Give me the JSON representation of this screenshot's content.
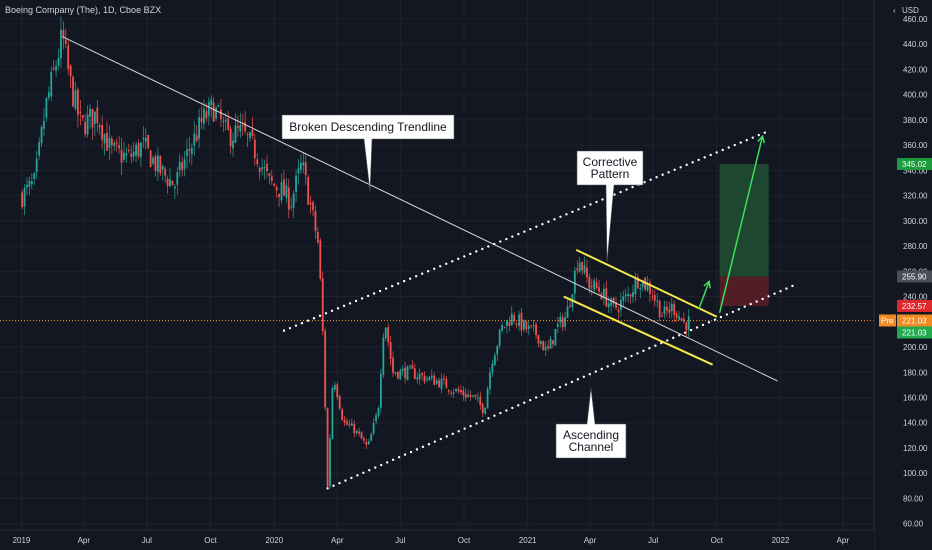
{
  "header": {
    "title": "Boeing Company (The), 1D, Cboe BZX",
    "currency": "USD"
  },
  "colors": {
    "background": "#131722",
    "up": "#26a69a",
    "down": "#ef5350",
    "grid": "#1e222d",
    "text": "#d1d4dc",
    "trendline": "#d8d8d8",
    "channel": "#ffffff",
    "pattern": "#f5e84a",
    "arrow": "#3ce05b",
    "target_zone": "#1f4d32",
    "stop_zone": "#5a1e28"
  },
  "chart_data": {
    "type": "candlestick",
    "x_tick_labels": [
      "2019",
      "Apr",
      "Jul",
      "Oct",
      "2020",
      "Apr",
      "Jul",
      "Oct",
      "2021",
      "Apr",
      "Jul",
      "Oct",
      "2022",
      "Apr"
    ],
    "ylim": [
      55,
      475
    ],
    "y_ticks": [
      60,
      80,
      100,
      120,
      140,
      160,
      180,
      200,
      220,
      240,
      260,
      280,
      300,
      320,
      340,
      360,
      380,
      400,
      420,
      440,
      460
    ],
    "price_path": [
      [
        "2019-01-02",
        320
      ],
      [
        "2019-01-20",
        330
      ],
      [
        "2019-02-05",
        390
      ],
      [
        "2019-03-01",
        446
      ],
      [
        "2019-03-12",
        410
      ],
      [
        "2019-03-28",
        375
      ],
      [
        "2019-04-20",
        385
      ],
      [
        "2019-05-10",
        355
      ],
      [
        "2019-06-05",
        350
      ],
      [
        "2019-06-25",
        360
      ],
      [
        "2019-07-20",
        340
      ],
      [
        "2019-08-10",
        328
      ],
      [
        "2019-08-30",
        355
      ],
      [
        "2019-09-20",
        380
      ],
      [
        "2019-10-05",
        390
      ],
      [
        "2019-10-25",
        368
      ],
      [
        "2019-11-15",
        370
      ],
      [
        "2019-12-05",
        355
      ],
      [
        "2019-12-25",
        330
      ],
      [
        "2020-01-10",
        325
      ],
      [
        "2020-01-25",
        315
      ],
      [
        "2020-02-10",
        345
      ],
      [
        "2020-02-25",
        305
      ],
      [
        "2020-03-05",
        280
      ],
      [
        "2020-03-12",
        200
      ],
      [
        "2020-03-18",
        89
      ],
      [
        "2020-03-26",
        180
      ],
      [
        "2020-04-10",
        140
      ],
      [
        "2020-04-25",
        135
      ],
      [
        "2020-05-15",
        120
      ],
      [
        "2020-05-30",
        150
      ],
      [
        "2020-06-08",
        225
      ],
      [
        "2020-06-20",
        180
      ],
      [
        "2020-07-15",
        180
      ],
      [
        "2020-08-10",
        175
      ],
      [
        "2020-08-28",
        172
      ],
      [
        "2020-09-20",
        165
      ],
      [
        "2020-10-15",
        160
      ],
      [
        "2020-10-30",
        150
      ],
      [
        "2020-11-10",
        190
      ],
      [
        "2020-11-25",
        215
      ],
      [
        "2020-12-10",
        225
      ],
      [
        "2020-12-28",
        215
      ],
      [
        "2021-01-15",
        210
      ],
      [
        "2021-01-29",
        195
      ],
      [
        "2021-02-12",
        215
      ],
      [
        "2021-02-26",
        225
      ],
      [
        "2021-03-15",
        272
      ],
      [
        "2021-03-30",
        250
      ],
      [
        "2021-04-15",
        245
      ],
      [
        "2021-05-05",
        230
      ],
      [
        "2021-05-25",
        240
      ],
      [
        "2021-06-10",
        255
      ],
      [
        "2021-06-28",
        245
      ],
      [
        "2021-07-15",
        225
      ],
      [
        "2021-07-30",
        232
      ],
      [
        "2021-08-16",
        218
      ],
      [
        "2021-08-24",
        221
      ]
    ],
    "last_price": "221.03",
    "price_labels": [
      {
        "value": 345.02,
        "text": "345.02",
        "color": "#1d9c3e"
      },
      {
        "value": 255.9,
        "text": "255.90",
        "color": "#4a4e59"
      },
      {
        "value": 232.57,
        "text": "232.57",
        "color": "#e0292f"
      },
      {
        "value": 221.03,
        "text": "221.03",
        "color": "#f18a21",
        "prefix": "Pre"
      },
      {
        "value": 221.03,
        "text": "221.03",
        "color": "#22ab4e"
      }
    ],
    "annotations": [
      {
        "id": "trendline",
        "text": "Broken Descending Trendline"
      },
      {
        "id": "pattern",
        "text": "Corrective\nPattern"
      },
      {
        "id": "channel",
        "text": "Ascending\nChannel"
      }
    ],
    "drawings": {
      "descending_trendline": {
        "from": [
          "2019-03-01",
          446
        ],
        "to": [
          "2021-12-28",
          173
        ]
      },
      "channel_lower": {
        "from": [
          "2020-03-18",
          88
        ],
        "to": [
          "2022-01-25",
          250
        ]
      },
      "channel_upper": {
        "from": [
          "2020-01-15",
          213
        ],
        "to": [
          "2021-12-10",
          370
        ]
      },
      "pattern_upper": {
        "from": [
          "2021-03-12",
          277
        ],
        "to": [
          "2021-10-01",
          224
        ]
      },
      "pattern_lower": {
        "from": [
          "2021-02-22",
          240
        ],
        "to": [
          "2021-09-25",
          186
        ]
      },
      "small_arrow": {
        "from": [
          "2021-09-05",
          230
        ],
        "to": [
          "2021-09-20",
          252
        ]
      },
      "big_arrow": {
        "from": [
          "2021-10-05",
          227
        ],
        "to": [
          "2021-12-06",
          367
        ]
      },
      "target_zone": {
        "from": "2021-10-05",
        "to": "2021-12-15",
        "top": 345.02,
        "bottom": 255.9
      },
      "stop_zone": {
        "from": "2021-10-05",
        "to": "2021-12-15",
        "top": 255.9,
        "bottom": 232.57
      }
    }
  }
}
